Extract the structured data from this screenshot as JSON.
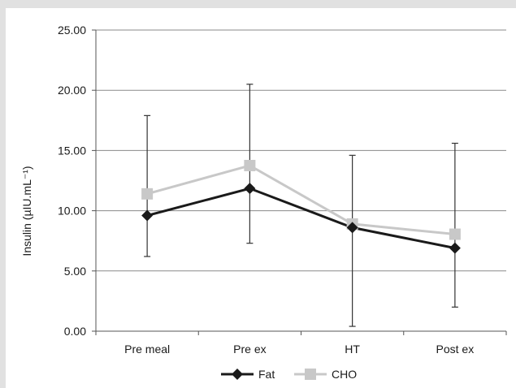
{
  "chart_data": {
    "type": "line",
    "categories": [
      "Pre meal",
      "Pre ex",
      "HT",
      "Post ex"
    ],
    "ylabel": "Insulin (µIU.mL⁻¹)",
    "ylim": [
      0,
      25
    ],
    "yticks": [
      "0.00",
      "5.00",
      "10.00",
      "15.00",
      "20.00",
      "25.00"
    ],
    "grid": "horizontal",
    "legend_position": "bottom",
    "series": [
      {
        "name": "Fat",
        "color": "#1a1a1a",
        "marker": "diamond",
        "values": [
          9.6,
          11.85,
          8.6,
          6.9
        ],
        "error_bars": [
          [
            6.2,
            17.9
          ],
          [
            7.3,
            20.5
          ],
          [
            0.4,
            14.6
          ],
          [
            2.0,
            15.6
          ]
        ]
      },
      {
        "name": "CHO",
        "color": "#c8c8c8",
        "marker": "square",
        "values": [
          11.4,
          13.75,
          8.9,
          8.05
        ],
        "error_bars": null
      }
    ]
  }
}
